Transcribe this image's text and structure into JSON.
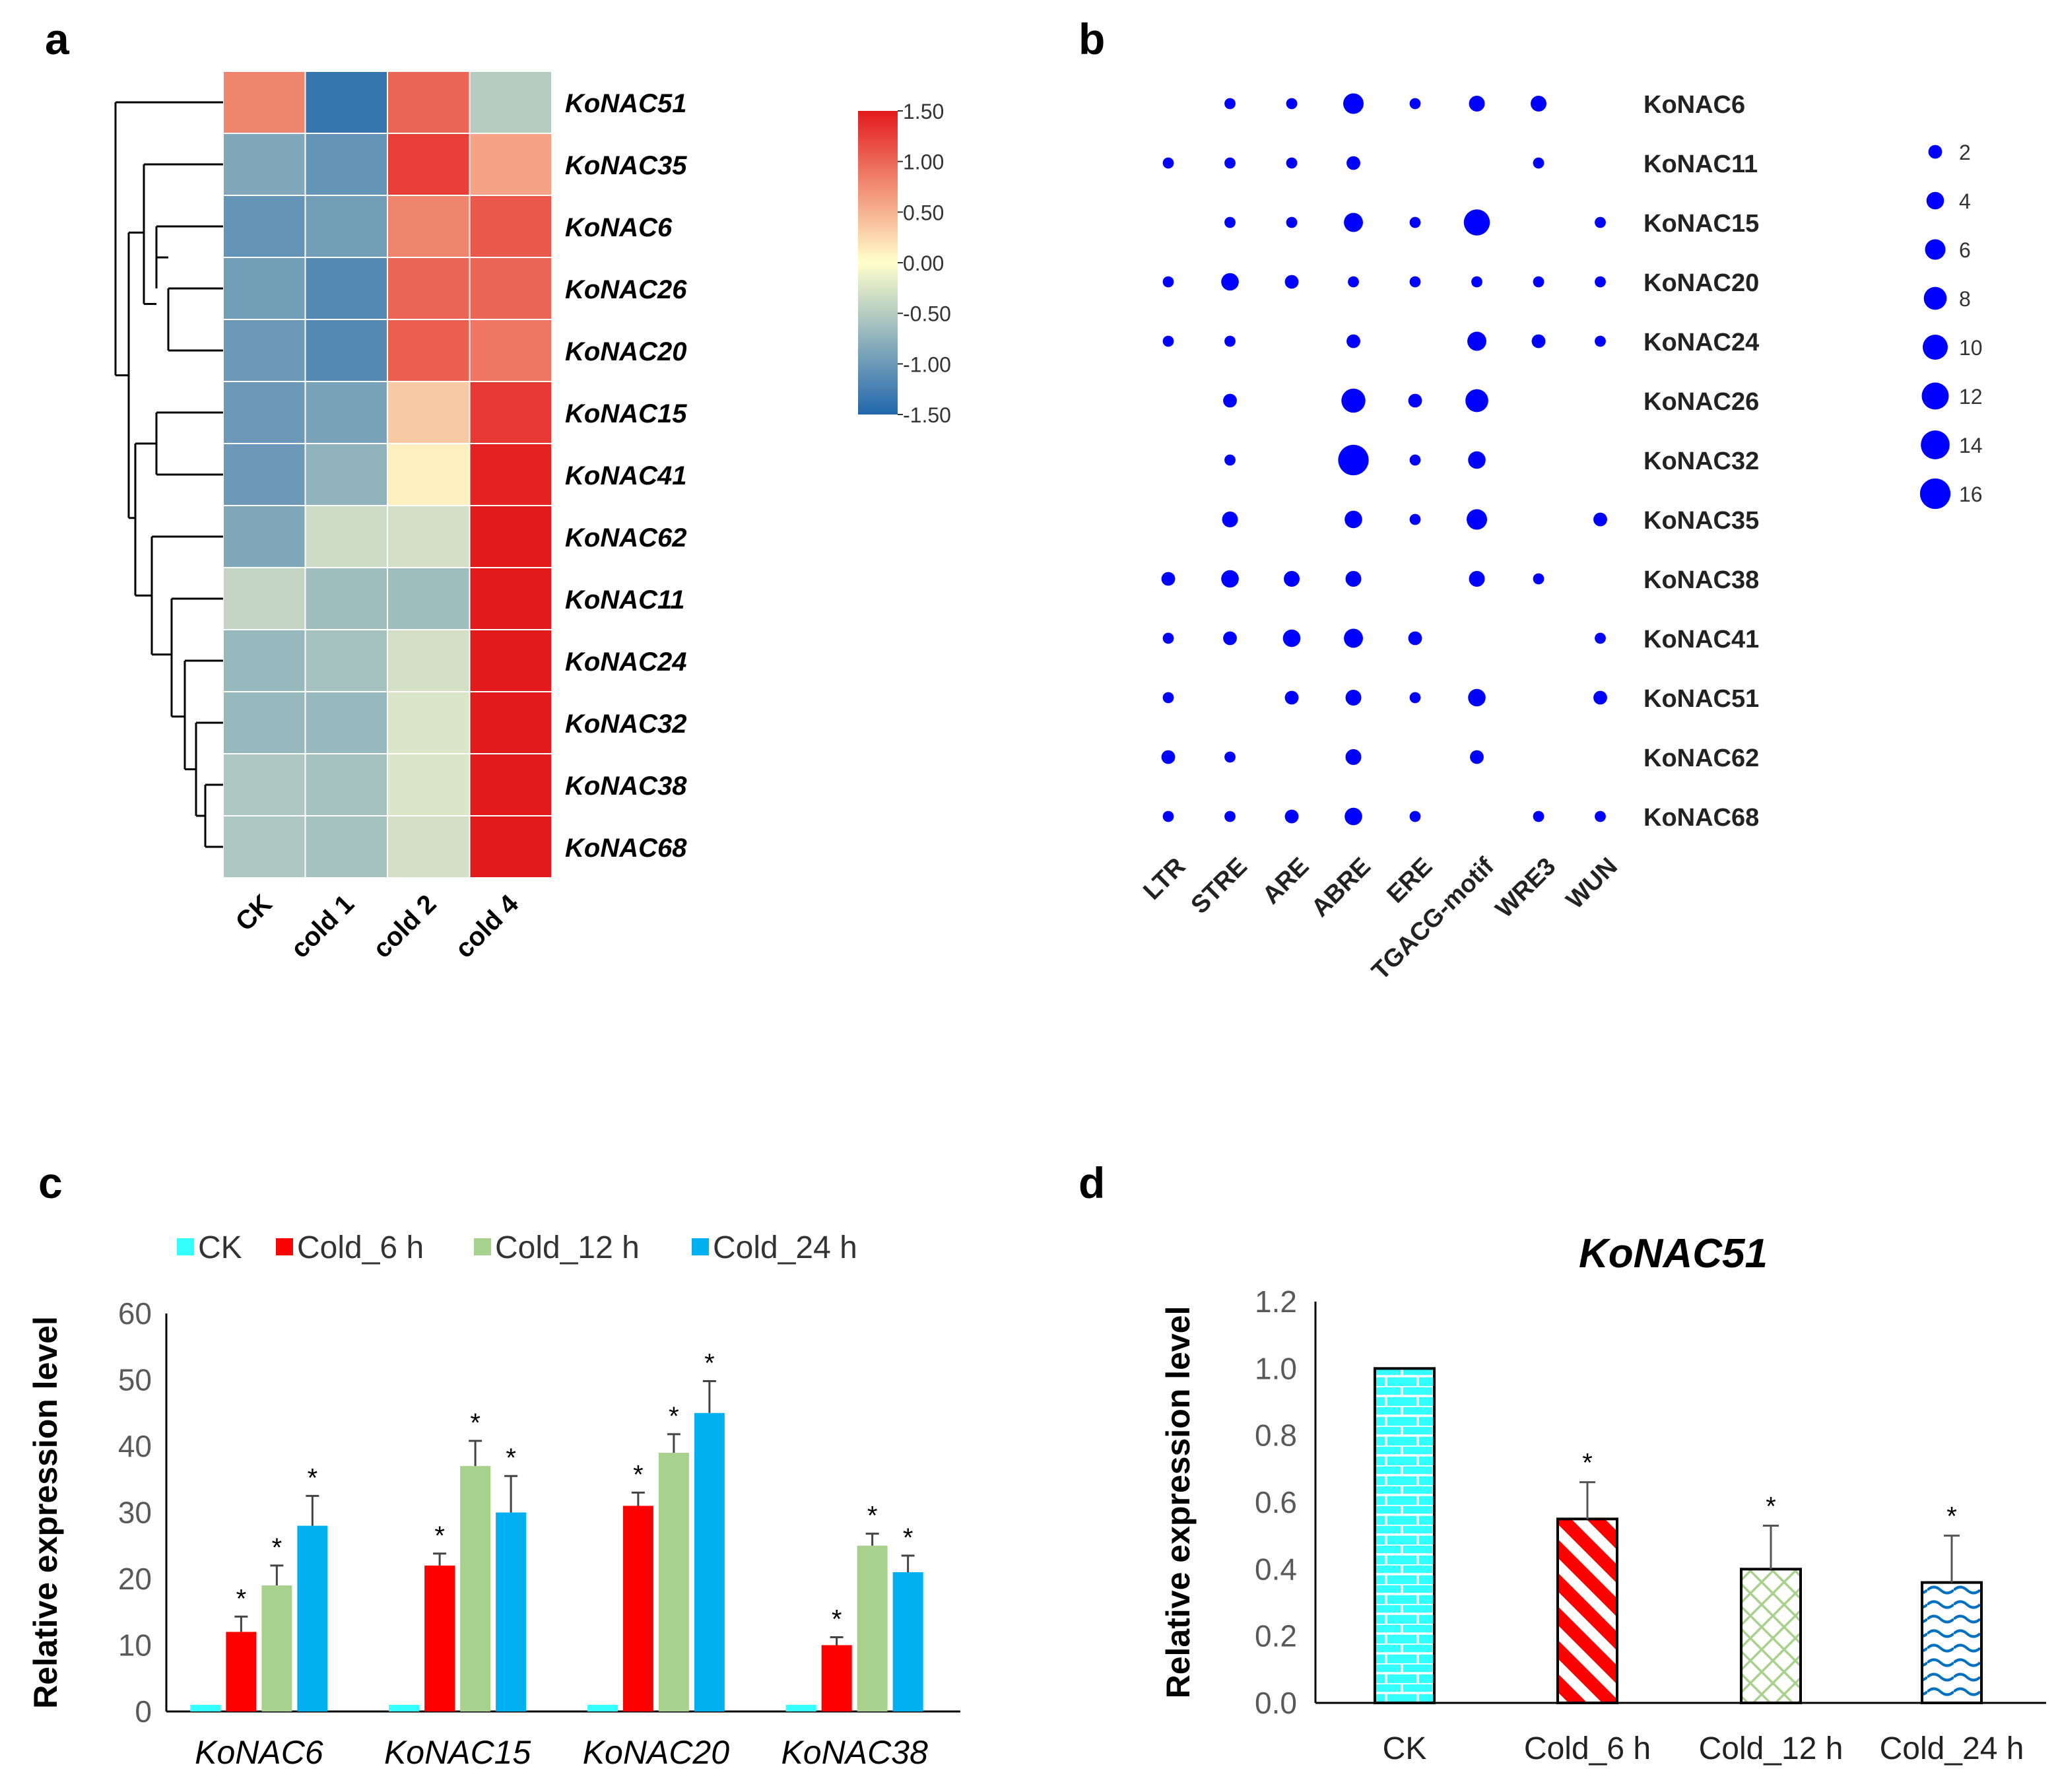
{
  "chart_data": [
    {
      "panel": "a",
      "type": "heatmap",
      "x_labels": [
        "CK",
        "cold 1",
        "cold 2",
        "cold 4"
      ],
      "y_labels": [
        "KoNAC51",
        "KoNAC35",
        "KoNAC6",
        "KoNAC26",
        "KoNAC20",
        "KoNAC15",
        "KoNAC41",
        "KoNAC62",
        "KoNAC11",
        "KoNAC24",
        "KoNAC32",
        "KoNAC38",
        "KoNAC68"
      ],
      "values": [
        [
          0.8,
          -1.35,
          1.0,
          -0.5
        ],
        [
          -0.85,
          -1.05,
          1.25,
          0.6
        ],
        [
          -1.05,
          -0.95,
          0.8,
          1.1
        ],
        [
          -0.95,
          -1.15,
          1.0,
          1.0
        ],
        [
          -1.0,
          -1.15,
          1.05,
          0.9
        ],
        [
          -1.0,
          -0.9,
          0.35,
          1.3
        ],
        [
          -1.0,
          -0.75,
          0.1,
          1.45
        ],
        [
          -0.85,
          -0.35,
          -0.3,
          1.5
        ],
        [
          -0.4,
          -0.65,
          -0.65,
          1.5
        ],
        [
          -0.7,
          -0.6,
          -0.3,
          1.5
        ],
        [
          -0.7,
          -0.7,
          -0.25,
          1.5
        ],
        [
          -0.55,
          -0.6,
          -0.25,
          1.5
        ],
        [
          -0.55,
          -0.6,
          -0.3,
          1.5
        ]
      ],
      "color_scale": {
        "min": -1.5,
        "max": 1.5,
        "colors": [
          "#2166ac",
          "#ffffcc",
          "#e31a1c"
        ]
      },
      "colorbar_ticks": [
        "1.50",
        "1.00",
        "0.50",
        "0.00",
        "-0.50",
        "-1.00",
        "-1.50"
      ],
      "colorbar_values": [
        1.5,
        1.0,
        0.5,
        0.0,
        -0.5,
        -1.0,
        -1.5
      ]
    },
    {
      "panel": "b",
      "type": "scatter",
      "subtype": "bubble",
      "x_labels": [
        "LTR",
        "STRE",
        "ARE",
        "ABRE",
        "ERE",
        "TGACG-motif",
        "WRE3",
        "WUN"
      ],
      "y_labels": [
        "KoNAC6",
        "KoNAC11",
        "KoNAC15",
        "KoNAC20",
        "KoNAC24",
        "KoNAC26",
        "KoNAC32",
        "KoNAC35",
        "KoNAC38",
        "KoNAC41",
        "KoNAC51",
        "KoNAC62",
        "KoNAC68"
      ],
      "counts": [
        [
          0,
          1,
          1,
          6,
          1,
          3,
          3,
          0
        ],
        [
          1,
          1,
          1,
          2,
          0,
          0,
          1,
          0
        ],
        [
          0,
          1,
          1,
          5,
          1,
          11,
          0,
          1
        ],
        [
          1,
          4,
          2,
          1,
          1,
          1,
          1,
          1
        ],
        [
          1,
          1,
          0,
          2,
          0,
          5,
          2,
          1
        ],
        [
          0,
          2,
          0,
          9,
          2,
          8,
          0,
          0
        ],
        [
          0,
          1,
          0,
          16,
          1,
          4,
          0,
          0
        ],
        [
          0,
          3,
          0,
          4,
          1,
          6,
          0,
          2
        ],
        [
          2,
          4,
          3,
          3,
          0,
          3,
          1,
          0
        ],
        [
          1,
          2,
          4,
          5,
          2,
          0,
          0,
          1
        ],
        [
          1,
          0,
          2,
          3,
          1,
          4,
          0,
          2
        ],
        [
          2,
          1,
          0,
          3,
          0,
          2,
          0,
          0
        ],
        [
          1,
          1,
          2,
          4,
          1,
          0,
          1,
          1
        ]
      ],
      "legend_sizes": [
        2,
        4,
        6,
        8,
        10,
        12,
        14,
        16
      ],
      "color": "#0000ff"
    },
    {
      "panel": "c",
      "type": "bar",
      "ylabel": "Relative expression level",
      "ylim": [
        0,
        60
      ],
      "yticks": [
        0,
        10,
        20,
        30,
        40,
        50,
        60
      ],
      "categories": [
        "KoNAC6",
        "KoNAC15",
        "KoNAC20",
        "KoNAC38"
      ],
      "series": [
        {
          "name": "CK",
          "color": "#33ffff",
          "values": [
            1,
            1,
            1,
            1
          ],
          "errors": [
            0,
            0,
            0,
            0
          ],
          "sig": [
            false,
            false,
            false,
            false
          ]
        },
        {
          "name": "Cold_6 h",
          "color": "#ff0000",
          "values": [
            12,
            22,
            31,
            10
          ],
          "errors": [
            2.3,
            1.8,
            2.0,
            1.2
          ],
          "sig": [
            true,
            true,
            true,
            true
          ]
        },
        {
          "name": "Cold_12 h",
          "color": "#a9d18e",
          "values": [
            19,
            37,
            39,
            25
          ],
          "errors": [
            3.0,
            3.8,
            2.8,
            1.8
          ],
          "sig": [
            true,
            true,
            true,
            true
          ]
        },
        {
          "name": "Cold_24 h",
          "color": "#00b0f0",
          "values": [
            28,
            30,
            45,
            21
          ],
          "errors": [
            4.5,
            5.5,
            4.8,
            2.5
          ],
          "sig": [
            true,
            true,
            true,
            true
          ]
        }
      ],
      "sig_marker": "*"
    },
    {
      "panel": "d",
      "type": "bar",
      "title": "KoNAC51",
      "ylabel": "Relative expression level",
      "ylim": [
        0,
        1.2
      ],
      "yticks": [
        "0.0",
        "0.2",
        "0.4",
        "0.6",
        "0.8",
        "1.0",
        "1.2"
      ],
      "ytick_values": [
        0,
        0.2,
        0.4,
        0.6,
        0.8,
        1.0,
        1.2
      ],
      "categories": [
        "CK",
        "Cold_6 h",
        "Cold_12 h",
        "Cold_24 h"
      ],
      "values": [
        1.0,
        0.55,
        0.4,
        0.36
      ],
      "errors": [
        0,
        0.11,
        0.13,
        0.14
      ],
      "sig": [
        false,
        true,
        true,
        true
      ],
      "patterns": [
        "brick",
        "diagonal-stripes",
        "diamond-lattice",
        "waves"
      ],
      "colors": [
        "#33ffff",
        "#ff0000",
        "#a9d18e",
        "#0070c0"
      ],
      "sig_marker": "*"
    }
  ],
  "panel_labels": {
    "a": "a",
    "b": "b",
    "c": "c",
    "d": "d"
  }
}
